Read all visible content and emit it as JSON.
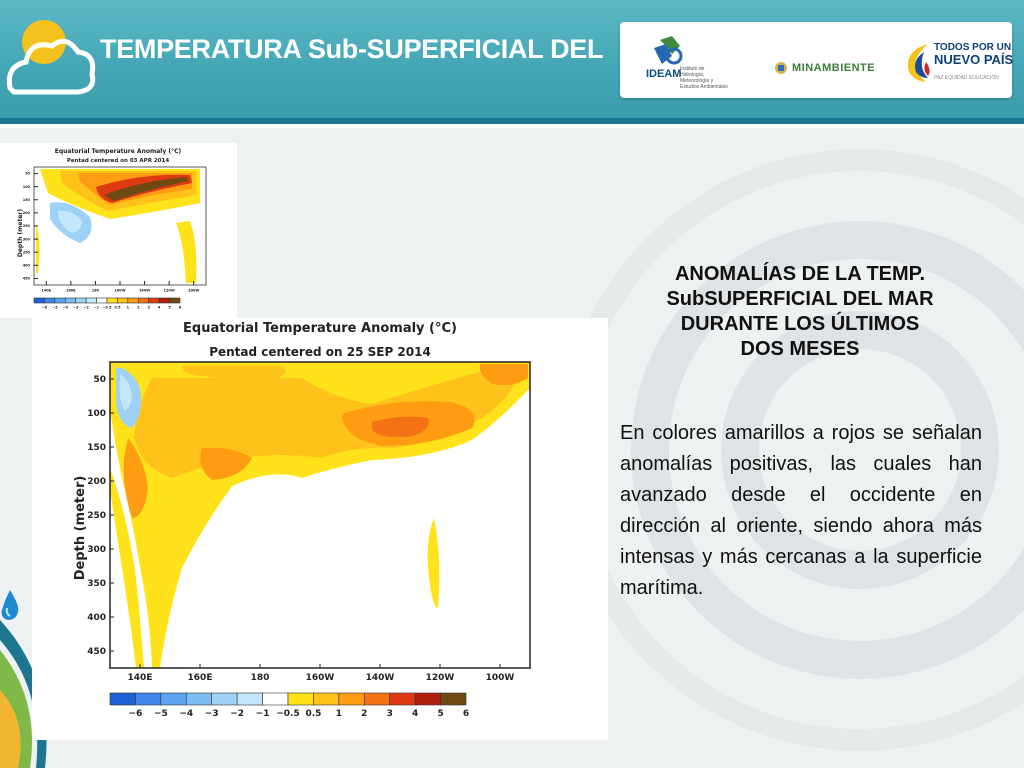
{
  "slide": {
    "title": "TEMPERATURA Sub-SUPERFICIAL DEL",
    "heading_lines": [
      "ANOMALÍAS DE LA TEMP.",
      "SubSUPERFICIAL DEL MAR",
      "DURANTE LOS ÚLTIMOS",
      "DOS MESES"
    ],
    "body_text": "En colores amarillos a rojos se señalan anomalías positivas, las cuales han avanzado desde el occidente en dirección al oriente, siendo ahora más intensas y más cercanas a la superficie marítima."
  },
  "logos": {
    "ideam_name": "IDEAM",
    "ideam_sub": "Instituto de Hidrología, Meteorología y Estudios Ambientales",
    "minambiente": "MINAMBIENTE",
    "todos_line1": "TODOS POR UN",
    "todos_line2": "NUEVO PAÍS",
    "todos_sub": "PAZ EQUIDAD EDUCACIÓN"
  },
  "small_map": {
    "title": "Equatorial Temperature Anomaly (°C)",
    "subtitle": "Pentad centered on 03 APR 2014",
    "ylabel": "Depth (meter)",
    "y_ticks": [
      "50",
      "100",
      "150",
      "200",
      "250",
      "300",
      "350",
      "400",
      "450"
    ],
    "x_ticks": [
      "140E",
      "160E",
      "180",
      "160W",
      "140W",
      "120W",
      "100W"
    ]
  },
  "big_map": {
    "title": "Equatorial Temperature Anomaly (°C)",
    "subtitle": "Pentad centered on 25 SEP 2014",
    "ylabel": "Depth (meter)",
    "y_ticks": [
      "50",
      "100",
      "150",
      "200",
      "250",
      "300",
      "350",
      "400",
      "450"
    ],
    "x_ticks": [
      "140E",
      "160E",
      "180",
      "160W",
      "140W",
      "120W",
      "100W"
    ]
  },
  "colorbar": {
    "labels": [
      "−6",
      "−5",
      "−4",
      "−3",
      "−2",
      "−1",
      "−0.5",
      "0.5",
      "1",
      "2",
      "3",
      "4",
      "5",
      "6"
    ],
    "colors": [
      "#1f5fd6",
      "#3f86e8",
      "#5aa4ef",
      "#7cbdf3",
      "#9dd2f6",
      "#c3e6fa",
      "#ffffff",
      "#ffe21a",
      "#ffc21a",
      "#ff9c12",
      "#f47214",
      "#dd3a12",
      "#b01e10",
      "#6e4a12"
    ]
  },
  "colors": {
    "header": "#45a7b6",
    "header_stripe": "#1e7590",
    "warm_light": "#ffe21a",
    "warm_mid": "#ffc21a",
    "warm_strong": "#ff9c12",
    "warm_hot": "#f47214",
    "cool_light": "#c3e6fa",
    "cool_mid": "#9dd2f6"
  }
}
